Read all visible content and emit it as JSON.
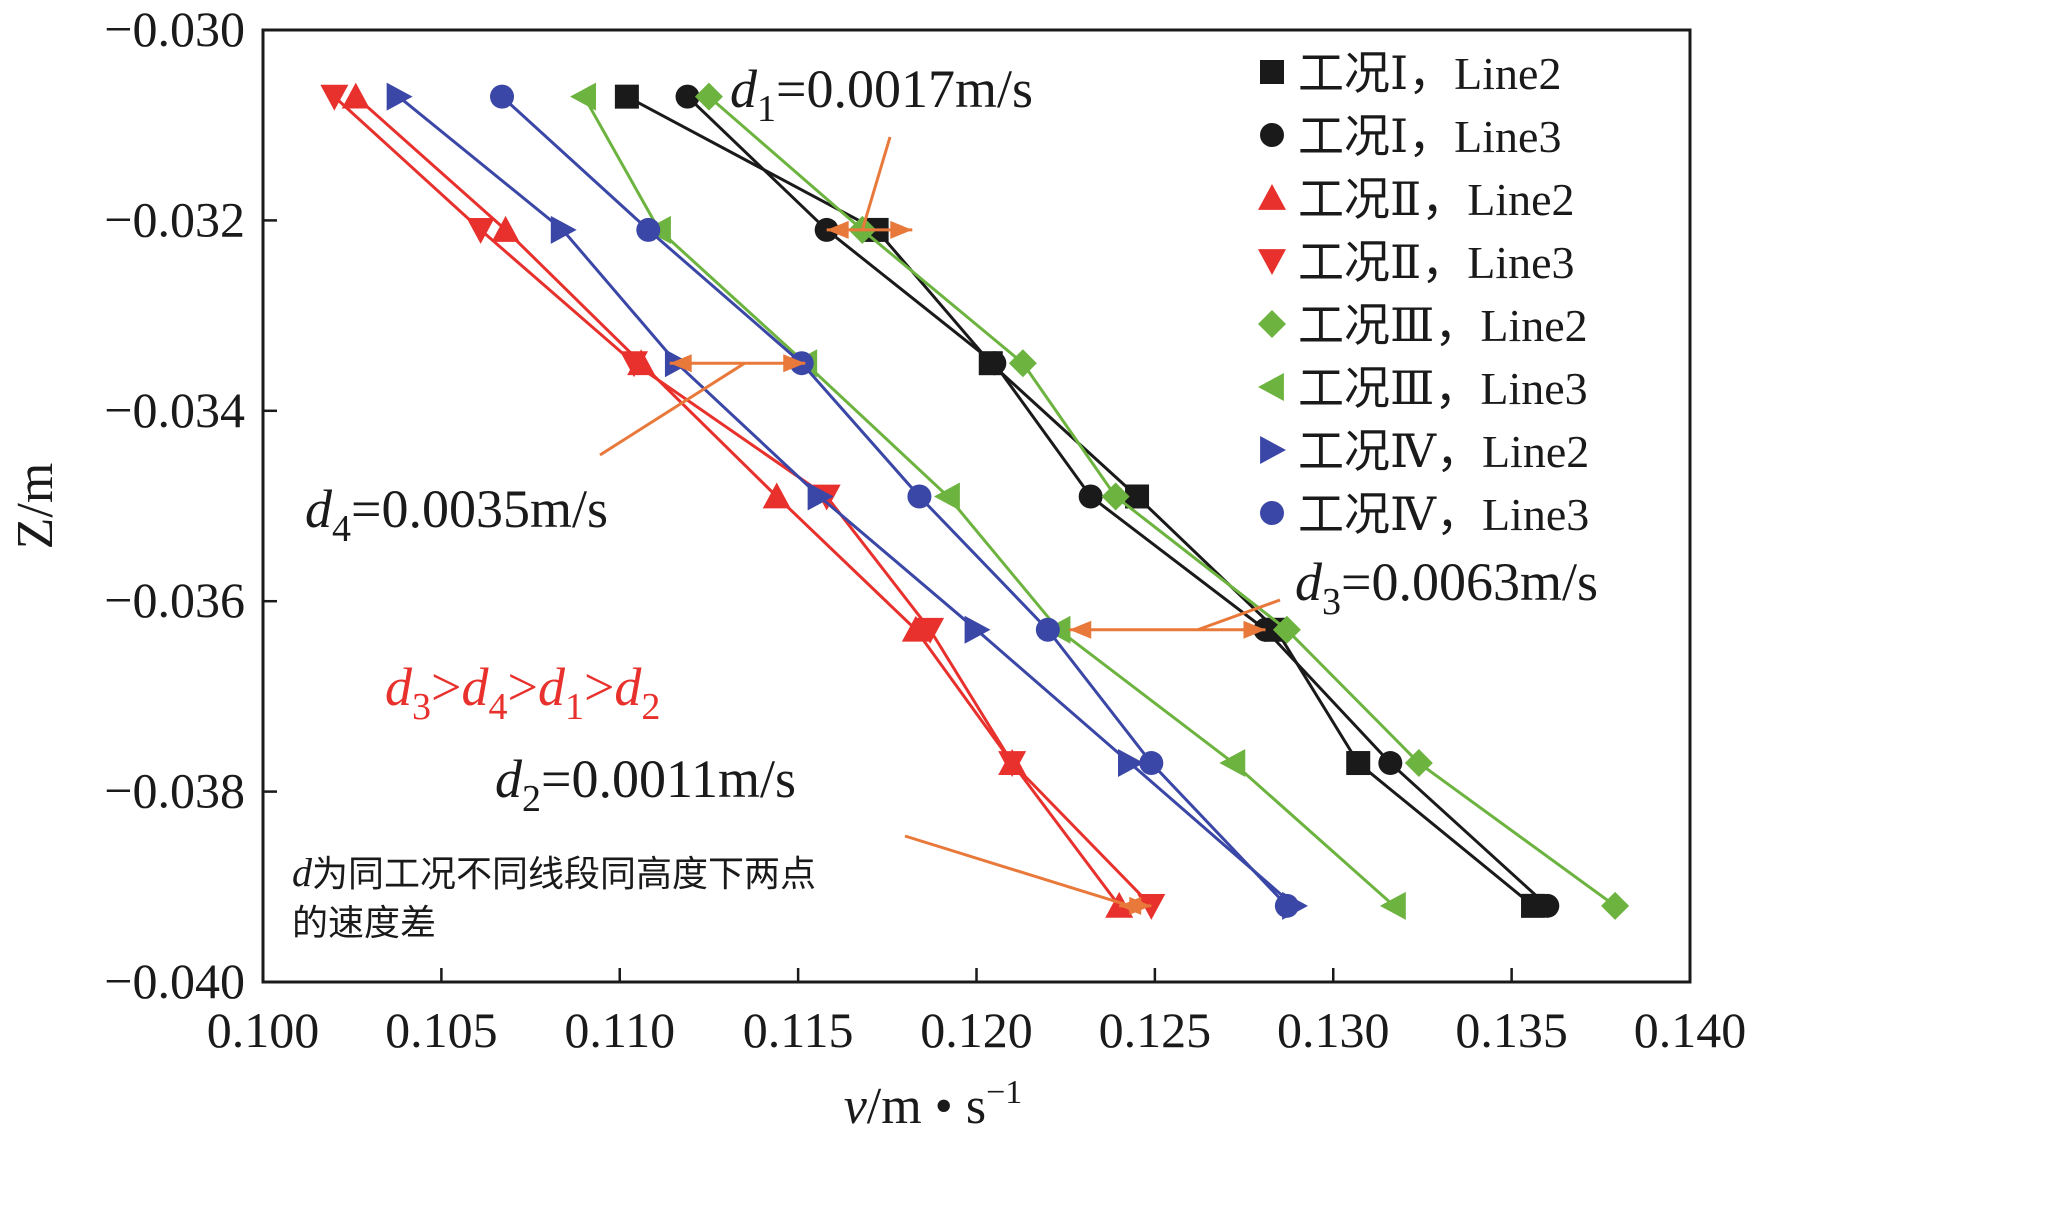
{
  "chart_data": {
    "type": "line",
    "xlabel": {
      "var": "v",
      "rest": "/m • s",
      "sup": "−1"
    },
    "ylabel": "Z/m",
    "xlim": [
      0.1,
      0.14
    ],
    "ylim": [
      -0.04,
      -0.03
    ],
    "xticks": [
      "0.100",
      "0.105",
      "0.110",
      "0.115",
      "0.120",
      "0.125",
      "0.130",
      "0.135",
      "0.140"
    ],
    "yticks": [
      "−0.030",
      "−0.032",
      "−0.034",
      "−0.036",
      "−0.038",
      "−0.040"
    ],
    "legend_position": "top-right",
    "series": [
      {
        "name": "工况Ⅰ，Line2",
        "color": "#1a1a1a",
        "marker": "square",
        "points": [
          [
            0.1102,
            -0.0307
          ],
          [
            0.1172,
            -0.0321
          ],
          [
            0.1204,
            -0.0335
          ],
          [
            0.1245,
            -0.0349
          ],
          [
            0.1284,
            -0.0363
          ],
          [
            0.1307,
            -0.0377
          ],
          [
            0.1356,
            -0.0392
          ]
        ]
      },
      {
        "name": "工况Ⅰ，Line3",
        "color": "#1a1a1a",
        "marker": "circle",
        "points": [
          [
            0.1119,
            -0.0307
          ],
          [
            0.1158,
            -0.0321
          ],
          [
            0.1205,
            -0.0335
          ],
          [
            0.1232,
            -0.0349
          ],
          [
            0.1281,
            -0.0363
          ],
          [
            0.1316,
            -0.0377
          ],
          [
            0.136,
            -0.0392
          ]
        ]
      },
      {
        "name": "工况Ⅱ，Line2",
        "color": "#e8312c",
        "marker": "triangle-up",
        "points": [
          [
            0.1026,
            -0.0307
          ],
          [
            0.1068,
            -0.0321
          ],
          [
            0.1106,
            -0.0335
          ],
          [
            0.1144,
            -0.0349
          ],
          [
            0.1183,
            -0.0363
          ],
          [
            0.121,
            -0.0377
          ],
          [
            0.124,
            -0.0392
          ]
        ]
      },
      {
        "name": "工况Ⅱ，Line3",
        "color": "#e8312c",
        "marker": "triangle-down",
        "points": [
          [
            0.102,
            -0.0307
          ],
          [
            0.1061,
            -0.0321
          ],
          [
            0.1104,
            -0.0335
          ],
          [
            0.1158,
            -0.0349
          ],
          [
            0.1187,
            -0.0363
          ],
          [
            0.121,
            -0.0377
          ],
          [
            0.1249,
            -0.0392
          ]
        ]
      },
      {
        "name": "工况Ⅲ，Line2",
        "color": "#6db33f",
        "marker": "diamond",
        "points": [
          [
            0.1125,
            -0.0307
          ],
          [
            0.1168,
            -0.0321
          ],
          [
            0.1213,
            -0.0335
          ],
          [
            0.1239,
            -0.0349
          ],
          [
            0.1287,
            -0.0363
          ],
          [
            0.1324,
            -0.0377
          ],
          [
            0.1379,
            -0.0392
          ]
        ]
      },
      {
        "name": "工况Ⅲ，Line3",
        "color": "#6db33f",
        "marker": "triangle-left",
        "points": [
          [
            0.109,
            -0.0307
          ],
          [
            0.1111,
            -0.0321
          ],
          [
            0.1152,
            -0.0335
          ],
          [
            0.1192,
            -0.0349
          ],
          [
            0.1223,
            -0.0363
          ],
          [
            0.1272,
            -0.0377
          ],
          [
            0.1317,
            -0.0392
          ]
        ]
      },
      {
        "name": "工况Ⅳ，Line2",
        "color": "#3b47a6",
        "marker": "triangle-right",
        "points": [
          [
            0.1038,
            -0.0307
          ],
          [
            0.1084,
            -0.0321
          ],
          [
            0.1116,
            -0.0335
          ],
          [
            0.1156,
            -0.0349
          ],
          [
            0.12,
            -0.0363
          ],
          [
            0.1243,
            -0.0377
          ],
          [
            0.1289,
            -0.0392
          ]
        ]
      },
      {
        "name": "工况Ⅳ，Line3",
        "color": "#3b47a6",
        "marker": "circle",
        "points": [
          [
            0.1067,
            -0.0307
          ],
          [
            0.1108,
            -0.0321
          ],
          [
            0.1151,
            -0.0335
          ],
          [
            0.1184,
            -0.0349
          ],
          [
            0.122,
            -0.0363
          ],
          [
            0.1249,
            -0.0377
          ],
          [
            0.1287,
            -0.0392
          ]
        ]
      }
    ],
    "annotations": {
      "d1": {
        "var": "d",
        "sub": "1",
        "text": "=0.0017m/s"
      },
      "d2": {
        "var": "d",
        "sub": "2",
        "text": "=0.0011m/s"
      },
      "d3": {
        "var": "d",
        "sub": "3",
        "text": "=0.0063m/s"
      },
      "d4": {
        "var": "d",
        "sub": "4",
        "text": "=0.0035m/s"
      },
      "order": {
        "color": "#e8312c",
        "gt": ">",
        "parts": [
          {
            "var": "d",
            "sub": "3"
          },
          {
            "var": "d",
            "sub": "4"
          },
          {
            "var": "d",
            "sub": "1"
          },
          {
            "var": "d",
            "sub": "2"
          }
        ]
      },
      "note_line1_var": "d",
      "note_line1": "为同工况不同线段同高度下两点",
      "note_line2": "的速度差",
      "arrow_color": "#e8793a"
    }
  }
}
